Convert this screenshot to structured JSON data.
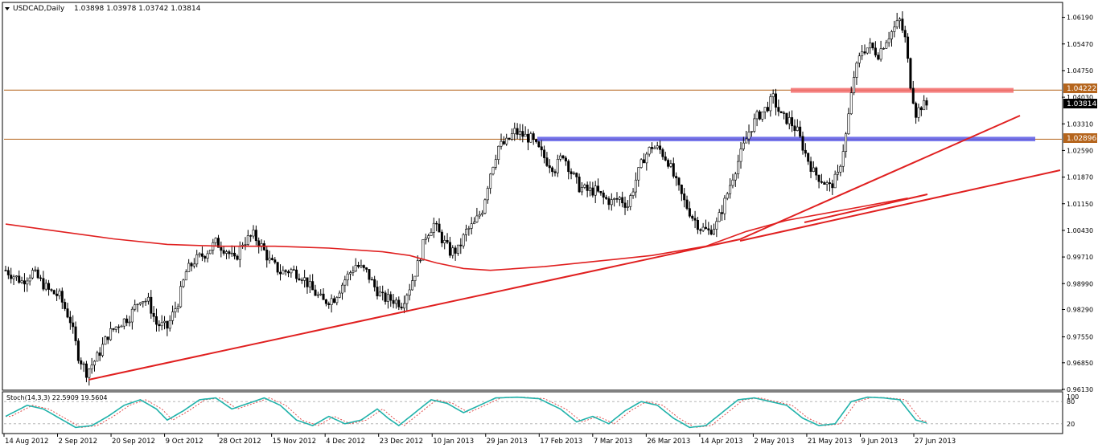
{
  "header": {
    "symbol": "USDCAD,Daily",
    "ohlc": "1.03898 1.03978 1.03742 1.03814"
  },
  "chart_data": {
    "type": "candlestick",
    "ylim": [
      0.9613,
      1.0655
    ],
    "y_ticks": [
      "1.06190",
      "1.05470",
      "1.04750",
      "1.04030",
      "1.03310",
      "1.02590",
      "1.01870",
      "1.01150",
      "1.00430",
      "0.99710",
      "0.98990",
      "0.98290",
      "0.97550",
      "0.96850",
      "0.96130"
    ],
    "x_ticks": [
      "14 Aug 2012",
      "2 Sep 2012",
      "20 Sep 2012",
      "9 Oct 2012",
      "28 Oct 2012",
      "15 Nov 2012",
      "4 Dec 2012",
      "23 Dec 2012",
      "10 Jan 2013",
      "29 Jan 2013",
      "17 Feb 2013",
      "7 Mar 2013",
      "26 Mar 2013",
      "14 Apr 2013",
      "2 May 2013",
      "21 May 2013",
      "9 Jun 2013",
      "27 Jun 2013"
    ],
    "price_path": [
      [
        0,
        0.9935
      ],
      [
        6,
        0.9905
      ],
      [
        10,
        0.993
      ],
      [
        16,
        0.988
      ],
      [
        20,
        0.9865
      ],
      [
        24,
        0.98
      ],
      [
        27,
        0.9705
      ],
      [
        30,
        0.966
      ],
      [
        34,
        0.97
      ],
      [
        38,
        0.976
      ],
      [
        42,
        0.979
      ],
      [
        46,
        0.981
      ],
      [
        50,
        0.986
      ],
      [
        53,
        0.985
      ],
      [
        56,
        0.979
      ],
      [
        60,
        0.978
      ],
      [
        64,
        0.985
      ],
      [
        67,
        0.993
      ],
      [
        70,
        0.996
      ],
      [
        74,
        0.998
      ],
      [
        78,
        1.001
      ],
      [
        82,
        0.999
      ],
      [
        85,
        0.996
      ],
      [
        88,
        1.001
      ],
      [
        92,
        1.003
      ],
      [
        95,
        1.0
      ],
      [
        98,
        0.996
      ],
      [
        102,
        0.993
      ],
      [
        106,
        0.9935
      ],
      [
        110,
        0.992
      ],
      [
        114,
        0.988
      ],
      [
        118,
        0.985
      ],
      [
        122,
        0.986
      ],
      [
        126,
        0.991
      ],
      [
        130,
        0.995
      ],
      [
        134,
        0.993
      ],
      [
        137,
        0.989
      ],
      [
        140,
        0.986
      ],
      [
        144,
        0.9855
      ],
      [
        147,
        0.9845
      ],
      [
        150,
        0.989
      ],
      [
        153,
        0.995
      ],
      [
        156,
        1.003
      ],
      [
        159,
        1.006
      ],
      [
        162,
        1.002
      ],
      [
        165,
        0.9985
      ],
      [
        168,
        0.999
      ],
      [
        171,
        1.004
      ],
      [
        174,
        1.006
      ],
      [
        177,
        1.01
      ],
      [
        180,
        1.02
      ],
      [
        183,
        1.027
      ],
      [
        186,
        1.028
      ],
      [
        189,
        1.031
      ],
      [
        192,
        1.03
      ],
      [
        195,
        1.029
      ],
      [
        198,
        1.026
      ],
      [
        201,
        1.023
      ],
      [
        204,
        1.021
      ],
      [
        207,
        1.025
      ],
      [
        210,
        1.02
      ],
      [
        213,
        1.016
      ],
      [
        216,
        1.015
      ],
      [
        219,
        1.015
      ],
      [
        222,
        1.013
      ],
      [
        225,
        1.012
      ],
      [
        228,
        1.013
      ],
      [
        231,
        1.011
      ],
      [
        234,
        1.018
      ],
      [
        237,
        1.024
      ],
      [
        240,
        1.027
      ],
      [
        243,
        1.026
      ],
      [
        246,
        1.023
      ],
      [
        249,
        1.017
      ],
      [
        252,
        1.012
      ],
      [
        255,
        1.008
      ],
      [
        258,
        1.005
      ],
      [
        261,
        1.004
      ],
      [
        264,
        1.006
      ],
      [
        267,
        1.012
      ],
      [
        270,
        1.019
      ],
      [
        273,
        1.025
      ],
      [
        276,
        1.031
      ],
      [
        279,
        1.035
      ],
      [
        282,
        1.037
      ],
      [
        285,
        1.04
      ],
      [
        288,
        1.035
      ],
      [
        291,
        1.034
      ],
      [
        294,
        1.031
      ],
      [
        297,
        1.025
      ],
      [
        300,
        1.02
      ],
      [
        303,
        1.018
      ],
      [
        306,
        1.016
      ],
      [
        309,
        1.019
      ],
      [
        312,
        1.03
      ],
      [
        315,
        1.046
      ],
      [
        318,
        1.053
      ],
      [
        321,
        1.054
      ],
      [
        324,
        1.052
      ],
      [
        327,
        1.056
      ],
      [
        330,
        1.059
      ],
      [
        332,
        1.061
      ],
      [
        334,
        1.056
      ],
      [
        336,
        1.044
      ],
      [
        338,
        1.036
      ],
      [
        340,
        1.038
      ],
      [
        342,
        1.0382
      ]
    ],
    "ma_path": [
      [
        0,
        1.006
      ],
      [
        20,
        1.004
      ],
      [
        40,
        1.002
      ],
      [
        60,
        1.0005
      ],
      [
        80,
        1.0
      ],
      [
        100,
        1.0
      ],
      [
        120,
        0.9995
      ],
      [
        140,
        0.9985
      ],
      [
        150,
        0.9975
      ],
      [
        160,
        0.9955
      ],
      [
        170,
        0.994
      ],
      [
        180,
        0.9935
      ],
      [
        200,
        0.9945
      ],
      [
        220,
        0.996
      ],
      [
        240,
        0.9975
      ],
      [
        260,
        1.0
      ],
      [
        275,
        1.004
      ],
      [
        290,
        1.007
      ],
      [
        305,
        1.009
      ],
      [
        320,
        1.011
      ],
      [
        335,
        1.013
      ]
    ],
    "stochastic": {
      "label": "Stoch(14,3,3) 22.5909 19.5604",
      "levels": [
        "80",
        "20"
      ],
      "axis_max": "100",
      "path": [
        [
          0,
          40
        ],
        [
          8,
          70
        ],
        [
          14,
          60
        ],
        [
          20,
          35
        ],
        [
          26,
          10
        ],
        [
          32,
          15
        ],
        [
          38,
          40
        ],
        [
          44,
          70
        ],
        [
          50,
          85
        ],
        [
          56,
          60
        ],
        [
          60,
          30
        ],
        [
          66,
          55
        ],
        [
          72,
          85
        ],
        [
          78,
          90
        ],
        [
          84,
          60
        ],
        [
          90,
          75
        ],
        [
          96,
          90
        ],
        [
          102,
          70
        ],
        [
          108,
          30
        ],
        [
          114,
          15
        ],
        [
          120,
          40
        ],
        [
          126,
          20
        ],
        [
          132,
          30
        ],
        [
          138,
          60
        ],
        [
          142,
          35
        ],
        [
          146,
          15
        ],
        [
          152,
          50
        ],
        [
          158,
          85
        ],
        [
          164,
          75
        ],
        [
          170,
          50
        ],
        [
          176,
          70
        ],
        [
          182,
          90
        ],
        [
          190,
          92
        ],
        [
          198,
          88
        ],
        [
          206,
          60
        ],
        [
          212,
          25
        ],
        [
          218,
          40
        ],
        [
          224,
          20
        ],
        [
          230,
          55
        ],
        [
          236,
          80
        ],
        [
          242,
          70
        ],
        [
          248,
          35
        ],
        [
          254,
          10
        ],
        [
          260,
          15
        ],
        [
          266,
          50
        ],
        [
          272,
          85
        ],
        [
          278,
          90
        ],
        [
          284,
          80
        ],
        [
          290,
          70
        ],
        [
          296,
          35
        ],
        [
          302,
          15
        ],
        [
          308,
          20
        ],
        [
          314,
          80
        ],
        [
          320,
          92
        ],
        [
          326,
          90
        ],
        [
          332,
          85
        ],
        [
          338,
          30
        ],
        [
          342,
          22
        ]
      ]
    },
    "price_labels": {
      "resistance": "1.04222",
      "current": "1.03814",
      "support": "1.02896"
    },
    "levels": {
      "resistance_line": 1.04222,
      "support_line": 1.02896,
      "resistance_band": [
        1.0415,
        1.0428
      ],
      "support_band": [
        1.0284,
        1.0296
      ]
    },
    "colors": {
      "trendline": "#e02020",
      "resistance_band": "#f26b6b",
      "support_band": "#5a5ae6",
      "level_line": "#b5651d",
      "stoch_main": "#20b2aa",
      "stoch_signal": "#e05050",
      "candle": "#000000"
    }
  }
}
